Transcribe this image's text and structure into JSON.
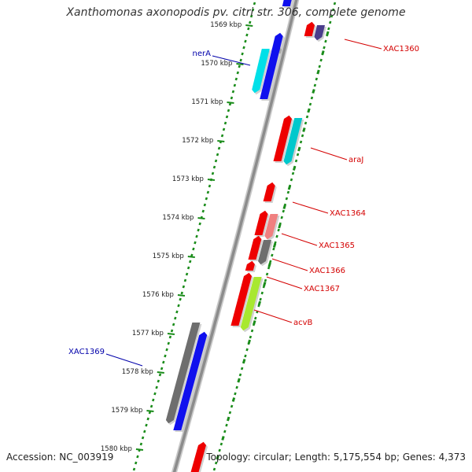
{
  "title": "Xanthomonas axonopodis pv. citri str. 306, complete genome",
  "footer": {
    "accession": "Accession: NC_003919",
    "summary": "Topology: circular; Length: 5,175,554 bp; Genes: 4,373"
  },
  "colors": {
    "backbone": "#8c8c8c",
    "tick_green": "#1a8c1a",
    "label_red": "#d40000",
    "label_blue": "#0000aa"
  },
  "ticks": [
    {
      "label": "1569 kbp",
      "kb": 1569
    },
    {
      "label": "1570 kbp",
      "kb": 1570
    },
    {
      "label": "1571 kbp",
      "kb": 1571
    },
    {
      "label": "1572 kbp",
      "kb": 1572
    },
    {
      "label": "1573 kbp",
      "kb": 1573
    },
    {
      "label": "1574 kbp",
      "kb": 1574
    },
    {
      "label": "1575 kbp",
      "kb": 1575
    },
    {
      "label": "1576 kbp",
      "kb": 1576
    },
    {
      "label": "1577 kbp",
      "kb": 1577
    },
    {
      "label": "1578 kbp",
      "kb": 1578
    },
    {
      "label": "1579 kbp",
      "kb": 1579
    },
    {
      "label": "1580 kbp",
      "kb": 1580
    }
  ],
  "gene_labels": [
    {
      "text": "XAC1360",
      "side": "right",
      "color": "#d40000"
    },
    {
      "text": "araJ",
      "side": "right",
      "color": "#d40000"
    },
    {
      "text": "XAC1364",
      "side": "right",
      "color": "#d40000"
    },
    {
      "text": "XAC1365",
      "side": "right",
      "color": "#d40000"
    },
    {
      "text": "XAC1366",
      "side": "right",
      "color": "#d40000"
    },
    {
      "text": "XAC1367",
      "side": "right",
      "color": "#d40000"
    },
    {
      "text": "acvB",
      "side": "right",
      "color": "#d40000"
    },
    {
      "text": "nerA",
      "side": "left",
      "color": "#0000aa"
    },
    {
      "text": "XAC1369",
      "side": "left",
      "color": "#0000aa"
    }
  ],
  "features": [
    {
      "color": "#1010ee",
      "lane": "inner-fwd"
    },
    {
      "color": "#1010ee",
      "lane": "inner-fwd"
    },
    {
      "color": "#00e0e8",
      "lane": "inner-rev"
    },
    {
      "color": "#1010ee",
      "lane": "inner-fwd"
    },
    {
      "color": "#ee0000",
      "lane": "outer-fwd"
    },
    {
      "color": "#4a3c8c",
      "lane": "outer-rev"
    },
    {
      "color": "#ee0000",
      "lane": "outer-fwd"
    },
    {
      "color": "#00c8cc",
      "lane": "outer-rev"
    },
    {
      "color": "#ee0000",
      "lane": "outer-fwd"
    },
    {
      "color": "#ee0000",
      "lane": "outer-fwd"
    },
    {
      "color": "#f08080",
      "lane": "outer-rev"
    },
    {
      "color": "#ee0000",
      "lane": "outer-fwd"
    },
    {
      "color": "#6e6e6e",
      "lane": "outer-rev"
    },
    {
      "color": "#ee0000",
      "lane": "outer-fwd"
    },
    {
      "color": "#ee0000",
      "lane": "outer-fwd"
    },
    {
      "color": "#a8e830",
      "lane": "outer-rev"
    },
    {
      "color": "#6e6e6e",
      "lane": "inner-rev"
    },
    {
      "color": "#1010ee",
      "lane": "inner-fwd"
    },
    {
      "color": "#ee0000",
      "lane": "outer-fwd"
    }
  ]
}
